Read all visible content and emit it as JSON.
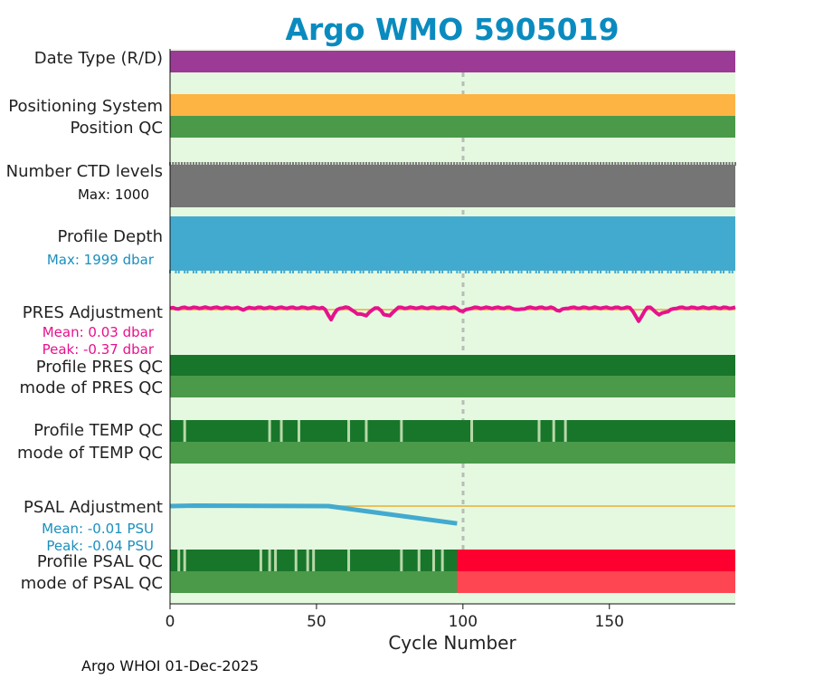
{
  "chart_data": {
    "type": "status-strip",
    "title": "Argo WMO 5905019",
    "xlabel": "Cycle Number",
    "xlim": [
      0,
      193
    ],
    "xticks": [
      0,
      50,
      100,
      150
    ],
    "vline_cycle": 100,
    "footer": "Argo WHOI 01-Dec-2025",
    "colors": {
      "title": "#0a8bbf",
      "background": "#e5f9e0",
      "date_type": "#9b3b96",
      "positioning": "#fdb443",
      "qc_good": "#4a9a4a",
      "qc_dark": "#18762b",
      "qc_light": "#b8d8a8",
      "qc_bad": "#fe0030",
      "qc_bad_light": "#fe4652",
      "ctd": "#757575",
      "depth": "#43aacf",
      "pres_adj": "#e6128c",
      "psal_adj": "#43aacf",
      "zero_line": "#e8b030",
      "label_pres": "#e6128c",
      "label_psal": "#1a8fbf",
      "label_depth": "#1a8fbf"
    },
    "rows": {
      "date_type": {
        "label": "Date Type (R/D)"
      },
      "positioning": {
        "label": "Positioning System"
      },
      "position_qc": {
        "label": "Position QC"
      },
      "ctd_levels": {
        "label": "Number CTD levels",
        "max_text": "Max: 1000"
      },
      "profile_depth": {
        "label": "Profile Depth",
        "max_text": "Max: 1999 dbar"
      },
      "pres_adjustment": {
        "label": "PRES Adjustment",
        "mean_text": "Mean: 0.03 dbar",
        "peak_text": "Peak: -0.37 dbar",
        "dips": [
          [
            2,
            -0.02
          ],
          [
            25,
            -0.04
          ],
          [
            55,
            -0.3
          ],
          [
            64,
            -0.18
          ],
          [
            67,
            -0.22
          ],
          [
            73,
            -0.12
          ],
          [
            75,
            -0.2
          ],
          [
            100,
            -0.1
          ],
          [
            119,
            -0.06
          ],
          [
            133,
            -0.08
          ],
          [
            160,
            -0.37
          ],
          [
            167,
            -0.2
          ],
          [
            170,
            -0.1
          ]
        ]
      },
      "profile_pres_qc": {
        "label": "Profile PRES QC"
      },
      "mode_pres_qc": {
        "label": "mode of PRES QC"
      },
      "profile_temp_qc": {
        "label": "Profile TEMP QC",
        "flagged_cycles": [
          5,
          34,
          38,
          44,
          61,
          67,
          79,
          103,
          126,
          131,
          135
        ]
      },
      "mode_temp_qc": {
        "label": "mode of TEMP QC"
      },
      "psal_adjustment": {
        "label": "PSAL Adjustment",
        "mean_text": "Mean: -0.01 PSU",
        "peak_text": "Peak: -0.04 PSU",
        "x": [
          0,
          8,
          54,
          98
        ],
        "y": [
          0.0,
          0.001,
          0.0,
          -0.04
        ]
      },
      "profile_psal_qc": {
        "label": "Profile PSAL QC",
        "flagged_cycles": [
          3,
          5,
          31,
          34,
          36,
          43,
          47,
          49,
          61,
          79,
          85,
          90,
          93
        ],
        "bad_from": 98
      },
      "mode_psal_qc": {
        "label": "mode of PSAL QC",
        "bad_from": 98
      }
    }
  }
}
